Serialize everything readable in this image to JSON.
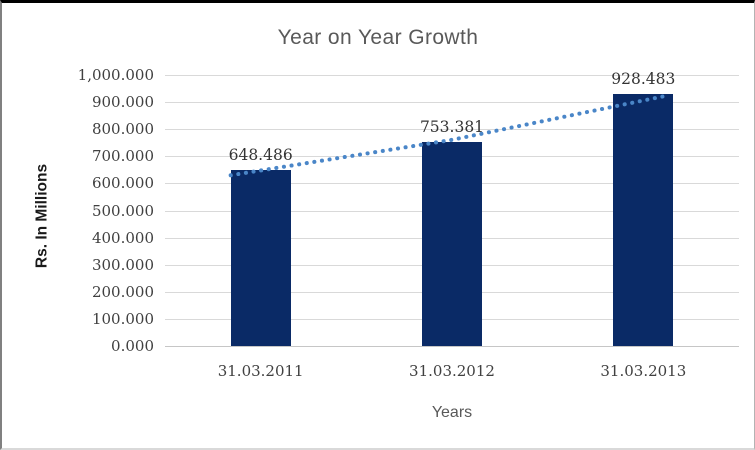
{
  "frame": {
    "border_top_color": "#000000",
    "border_left_color": "#808080",
    "border_right_color": "#b3b3b3",
    "border_bottom_color": "#d9d9d9"
  },
  "chart_data": {
    "type": "bar",
    "title": "Year on Year Growth",
    "xlabel": "Years",
    "ylabel": "Rs. In Millions",
    "categories": [
      "31.03.2011",
      "31.03.2012",
      "31.03.2013"
    ],
    "values": [
      648.486,
      753.381,
      928.483
    ],
    "data_labels": [
      "648.486",
      "753.381",
      "928.483"
    ],
    "ylim": [
      0,
      1000
    ],
    "ytick_step": 100,
    "ytick_labels": [
      "0.000",
      "100.000",
      "200.000",
      "300.000",
      "400.000",
      "500.000",
      "600.000",
      "700.000",
      "800.000",
      "900.000",
      "1,000.000"
    ],
    "grid": true,
    "legend_position": "none",
    "trendline": "dotted",
    "colors": {
      "bar": "#0a2a66",
      "trendline": "#4a86c8",
      "gridline": "#d9d9d9",
      "axis_line": "#c6c6c6",
      "title_text": "#595959",
      "tick_text": "#404040",
      "data_label_text": "#333333",
      "ylabel_text": "#1a1a1a"
    }
  }
}
